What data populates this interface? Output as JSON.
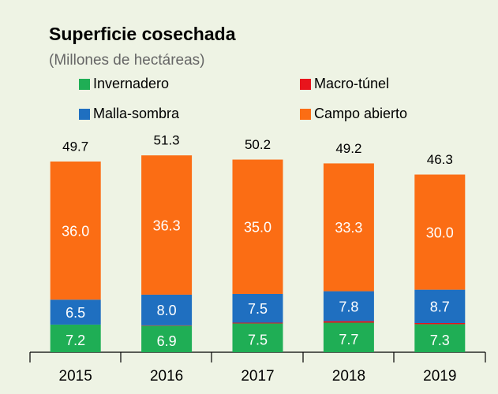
{
  "chart_data": {
    "type": "stacked-bar",
    "title": "Superficie cosechada",
    "subtitle": "(Millones de hectáreas)",
    "categories": [
      "2015",
      "2016",
      "2017",
      "2018",
      "2019"
    ],
    "totals": [
      49.7,
      51.3,
      50.2,
      49.2,
      46.3
    ],
    "series": [
      {
        "name": "Invernadero",
        "color": "#1fae55",
        "values": [
          7.2,
          6.9,
          7.5,
          7.7,
          7.3
        ]
      },
      {
        "name": "Macro-túnel",
        "color": "#e8141c",
        "values": [
          0,
          0.1,
          0.2,
          0.4,
          0.3
        ]
      },
      {
        "name": "Malla-sombra",
        "color": "#1f6fc0",
        "values": [
          6.5,
          8.0,
          7.5,
          7.8,
          8.7
        ],
        "value_labels": [
          "6.5",
          "8.0",
          "7.5",
          "7.8",
          "8.7"
        ]
      },
      {
        "name": "Campo abierto",
        "color": "#fb6d14",
        "values": [
          36.0,
          36.3,
          35.0,
          33.3,
          30.0
        ],
        "value_labels": [
          "36.0",
          "36.3",
          "35.0",
          "33.3",
          "30.0"
        ]
      }
    ]
  }
}
